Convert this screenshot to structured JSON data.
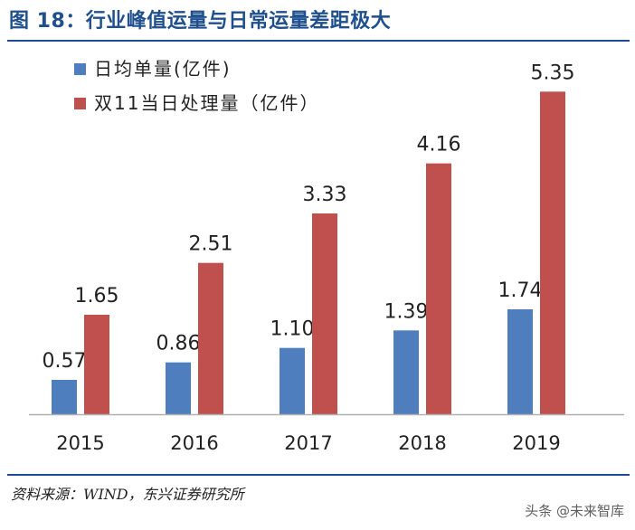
{
  "figure": {
    "title": "图 18：行业峰值运量与日常运量差距极大",
    "source": "资料来源：WIND，东兴证券研究所",
    "watermark": "头条 @未来智库"
  },
  "colors": {
    "title": "#1f4f8c",
    "series_daily": "#4f7ebf",
    "series_peak": "#c0504d",
    "axis": "#b0b0b0",
    "label": "#222222"
  },
  "chart_data": {
    "type": "bar",
    "title": "",
    "xlabel": "",
    "ylabel": "",
    "ylim": [
      0,
      6
    ],
    "grid": false,
    "legend_position": "top-left",
    "categories": [
      "2015",
      "2016",
      "2017",
      "2018",
      "2019"
    ],
    "series": [
      {
        "name": "日均单量(亿件)",
        "values": [
          0.57,
          0.86,
          1.1,
          1.39,
          1.74
        ],
        "labels": [
          "0.57",
          "0.86",
          "1.10",
          "1.39",
          "1.74"
        ]
      },
      {
        "name": "双11当日处理量（亿件）",
        "values": [
          1.65,
          2.51,
          3.33,
          4.16,
          5.35
        ],
        "labels": [
          "1.65",
          "2.51",
          "3.33",
          "4.16",
          "5.35"
        ]
      }
    ]
  }
}
